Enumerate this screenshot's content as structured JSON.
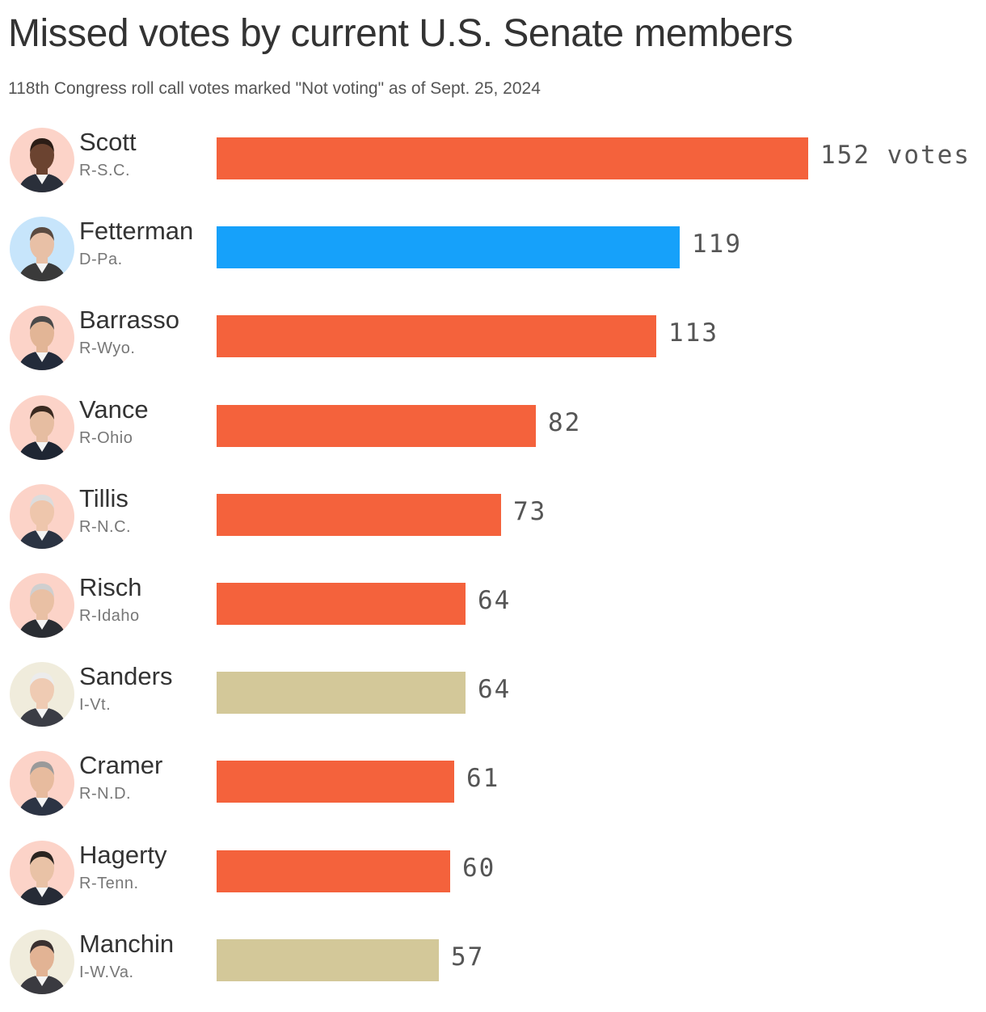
{
  "title": "Missed votes by current U.S. Senate members",
  "subtitle": "118th Congress roll call votes marked \"Not voting\" as of Sept. 25, 2024",
  "colors": {
    "R": "#f4623c",
    "D": "#16a1fa",
    "I": "#d3c899",
    "avatar_bg_R": "#fcd3c8",
    "avatar_bg_D": "#c7e5fb",
    "avatar_bg_I": "#f0ecdc"
  },
  "chart_data": {
    "type": "bar",
    "orientation": "horizontal",
    "title": "Missed votes by current U.S. Senate members",
    "subtitle": "118th Congress roll call votes marked \"Not voting\" as of Sept. 25, 2024",
    "xlim": [
      0,
      152
    ],
    "grid": false,
    "value_suffix_first": " votes",
    "bars": [
      {
        "name": "Scott",
        "party_label": "R-S.C.",
        "party": "R",
        "value": 152
      },
      {
        "name": "Fetterman",
        "party_label": "D-Pa.",
        "party": "D",
        "value": 119
      },
      {
        "name": "Barrasso",
        "party_label": "R-Wyo.",
        "party": "R",
        "value": 113
      },
      {
        "name": "Vance",
        "party_label": "R-Ohio",
        "party": "R",
        "value": 82
      },
      {
        "name": "Tillis",
        "party_label": "R-N.C.",
        "party": "R",
        "value": 73
      },
      {
        "name": "Risch",
        "party_label": "R-Idaho",
        "party": "R",
        "value": 64
      },
      {
        "name": "Sanders",
        "party_label": "I-Vt.",
        "party": "I",
        "value": 64
      },
      {
        "name": "Cramer",
        "party_label": "R-N.D.",
        "party": "R",
        "value": 61
      },
      {
        "name": "Hagerty",
        "party_label": "R-Tenn.",
        "party": "R",
        "value": 60
      },
      {
        "name": "Manchin",
        "party_label": "I-W.Va.",
        "party": "I",
        "value": 57
      }
    ]
  }
}
